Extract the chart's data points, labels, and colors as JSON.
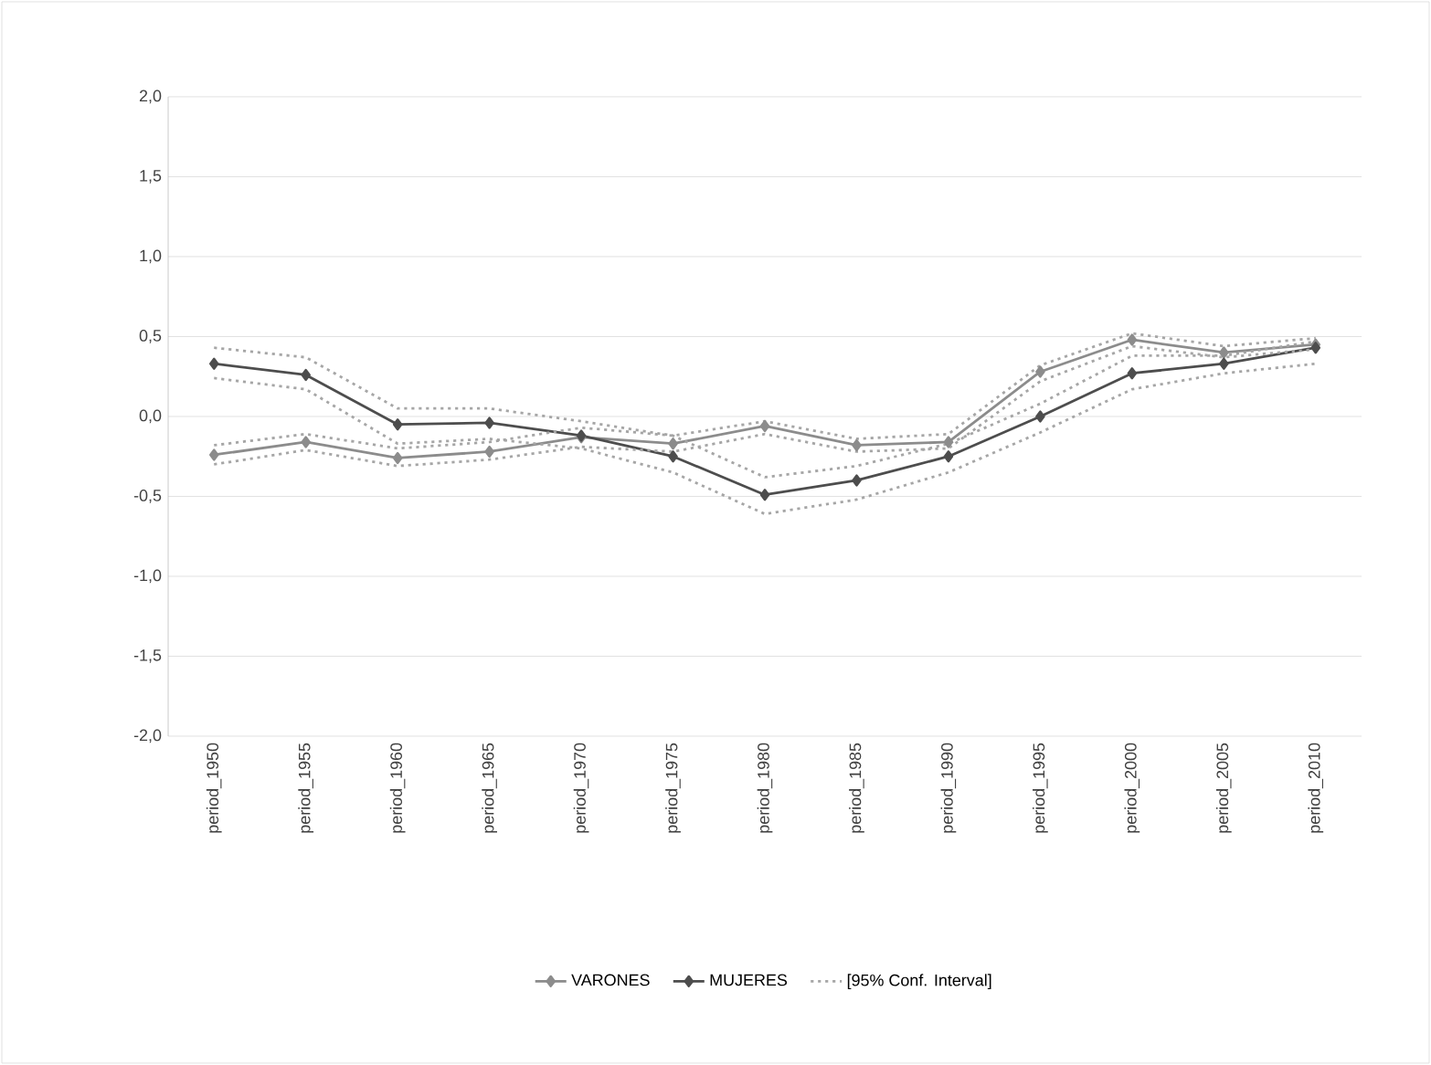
{
  "chart_data": {
    "type": "line",
    "categories": [
      "period_1950",
      "period_1955",
      "period_1960",
      "period_1965",
      "period_1970",
      "period_1975",
      "period_1980",
      "period_1985",
      "period_1990",
      "period_1995",
      "period_2000",
      "period_2005",
      "period_2010"
    ],
    "series": [
      {
        "name": "VARONES",
        "color": "#8c8c8c",
        "values": [
          -0.24,
          -0.16,
          -0.26,
          -0.22,
          -0.13,
          -0.17,
          -0.06,
          -0.18,
          -0.16,
          0.28,
          0.48,
          0.4,
          0.45
        ]
      },
      {
        "name": "MUJERES",
        "color": "#4d4d4d",
        "values": [
          0.33,
          0.26,
          -0.05,
          -0.04,
          -0.12,
          -0.25,
          -0.49,
          -0.4,
          -0.25,
          0.0,
          0.27,
          0.33,
          0.43
        ]
      },
      {
        "name": "[95% Conf. Interval]",
        "color": "#a6a6a6",
        "marker": "none",
        "line_style": "dotted",
        "values": [
          0.43,
          0.37,
          0.05,
          0.05,
          -0.03,
          -0.12,
          -0.38,
          -0.31,
          -0.17,
          0.08,
          0.38,
          0.38,
          0.47
        ]
      },
      {
        "color": "#a6a6a6",
        "marker": "none",
        "line_style": "dotted",
        "values": [
          0.24,
          0.17,
          -0.17,
          -0.14,
          -0.2,
          -0.35,
          -0.61,
          -0.52,
          -0.35,
          -0.1,
          0.17,
          0.27,
          0.33
        ]
      },
      {
        "color": "#a6a6a6",
        "marker": "none",
        "line_style": "dotted",
        "values": [
          -0.18,
          -0.11,
          -0.2,
          -0.16,
          -0.07,
          -0.12,
          -0.03,
          -0.14,
          -0.11,
          0.32,
          0.52,
          0.44,
          0.49
        ]
      },
      {
        "color": "#a6a6a6",
        "marker": "none",
        "line_style": "dotted",
        "values": [
          -0.3,
          -0.21,
          -0.31,
          -0.27,
          -0.19,
          -0.22,
          -0.11,
          -0.22,
          -0.2,
          0.22,
          0.44,
          0.37,
          0.42
        ]
      }
    ],
    "ylim": [
      -2.0,
      2.0
    ],
    "yticks": [
      {
        "value": -2.0,
        "label": "-2,0"
      },
      {
        "value": -1.5,
        "label": "-1,5"
      },
      {
        "value": -1.0,
        "label": "-1,0"
      },
      {
        "value": -0.5,
        "label": "-0,5"
      },
      {
        "value": 0.0,
        "label": "0,0"
      },
      {
        "value": 0.5,
        "label": "0,5"
      },
      {
        "value": 1.0,
        "label": "1,0"
      },
      {
        "value": 1.5,
        "label": "1,5"
      },
      {
        "value": 2.0,
        "label": "2,0"
      }
    ],
    "grid": "y",
    "legend": "bottom",
    "marker": "diamond",
    "line_style": "solid"
  }
}
